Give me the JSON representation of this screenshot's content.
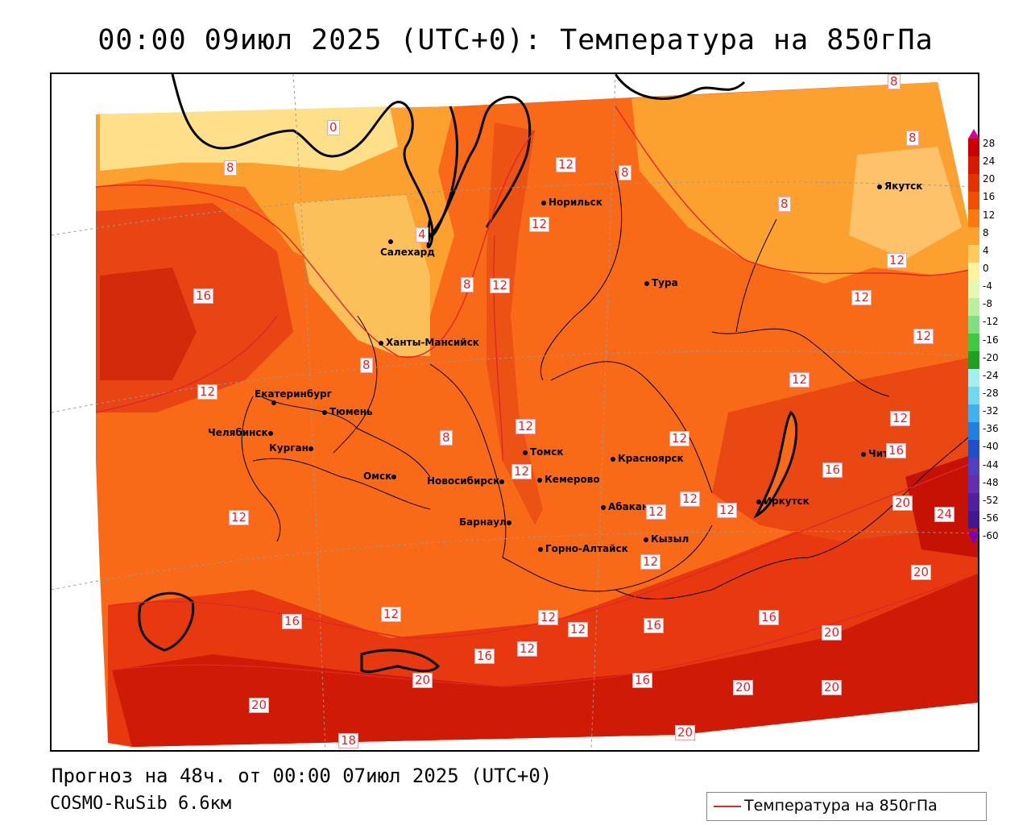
{
  "title": "00:00 09июл 2025 (UTC+0): Температура на 850гПа",
  "footer": {
    "forecast": "Прогноз на 48ч. от 00:00 07июл 2025 (UTC+0)",
    "model": "COSMO-RuSib 6.6км"
  },
  "legend": {
    "label": "Температура на 850гПа",
    "color": "#e0262c"
  },
  "colorbar": {
    "labels": [
      "28",
      "24",
      "20",
      "16",
      "12",
      "8",
      "4",
      "0",
      "-4",
      "-8",
      "-12",
      "-16",
      "-20",
      "-24",
      "-28",
      "-32",
      "-36",
      "-40",
      "-44",
      "-48",
      "-52",
      "-56",
      "-60"
    ],
    "colors": [
      "#c80000",
      "#d41a00",
      "#e23300",
      "#f05000",
      "#fa7a10",
      "#fca030",
      "#fecb5c",
      "#fff3a0",
      "#e4f8b0",
      "#b8f0a0",
      "#80e080",
      "#40c840",
      "#20a020",
      "#a0f0f0",
      "#70d8f0",
      "#40b0f0",
      "#2080e0",
      "#2050c8",
      "#5040c0",
      "#6030b0",
      "#5020a0",
      "#401890"
    ]
  },
  "cities": [
    {
      "name": "Норильск"
    },
    {
      "name": "Якутск"
    },
    {
      "name": "Салехард"
    },
    {
      "name": "Тура"
    },
    {
      "name": "Ханты-Мансийск"
    },
    {
      "name": "Екатеринбург"
    },
    {
      "name": "Тюмень"
    },
    {
      "name": "Челябинск"
    },
    {
      "name": "Курган"
    },
    {
      "name": "Омск"
    },
    {
      "name": "Новосибирск"
    },
    {
      "name": "Томск"
    },
    {
      "name": "Кемерово"
    },
    {
      "name": "Красноярск"
    },
    {
      "name": "Барнаул"
    },
    {
      "name": "Абакан"
    },
    {
      "name": "Иркутск"
    },
    {
      "name": "Чита"
    },
    {
      "name": "Кызыл"
    },
    {
      "name": "Горно-Алтайск"
    }
  ],
  "contour_labels": [
    "0",
    "4",
    "8",
    "8",
    "8",
    "8",
    "8",
    "8",
    "8",
    "8",
    "12",
    "12",
    "12",
    "12",
    "12",
    "12",
    "12",
    "12",
    "12",
    "12",
    "12",
    "12",
    "12",
    "12",
    "12",
    "12",
    "12",
    "12",
    "12",
    "12",
    "12",
    "16",
    "16",
    "16",
    "16",
    "16",
    "16",
    "16",
    "16",
    "20",
    "20",
    "20",
    "20",
    "20",
    "20",
    "20",
    "20",
    "24",
    "18"
  ]
}
